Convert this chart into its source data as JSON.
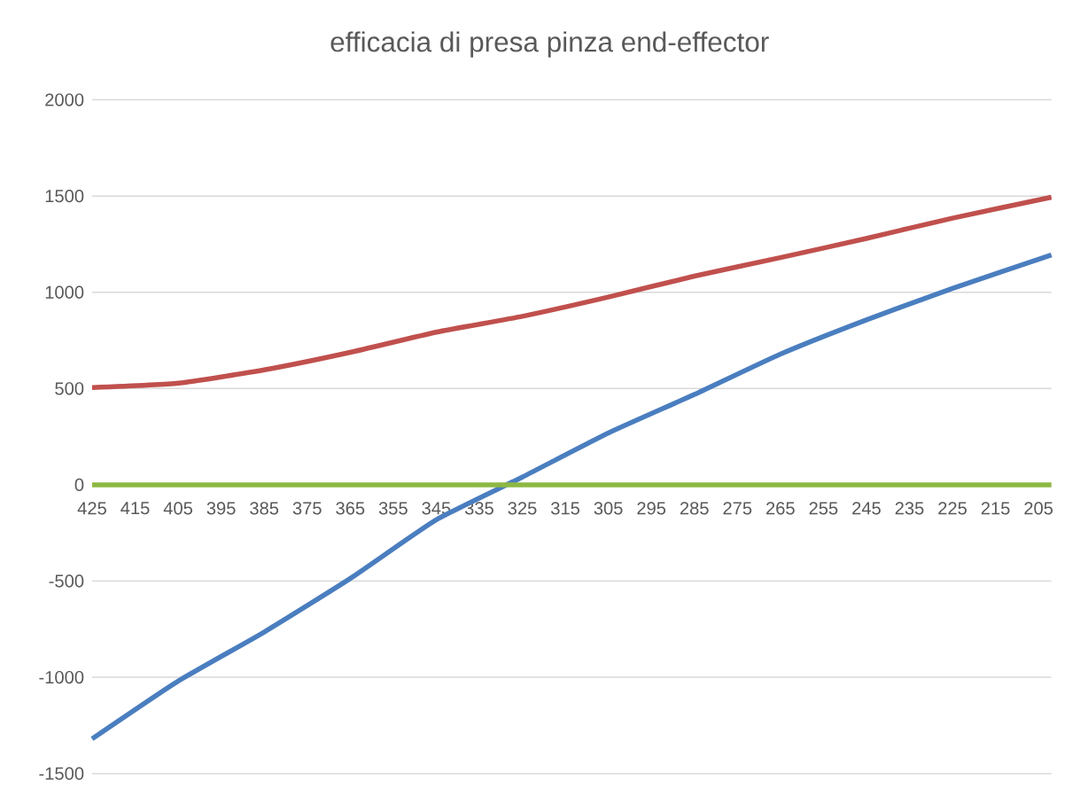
{
  "chart_data": {
    "type": "line",
    "title": "efficacia di presa pinza end-effector",
    "xlim": [
      425,
      202
    ],
    "xticks": [
      425,
      415,
      405,
      395,
      385,
      375,
      365,
      355,
      345,
      335,
      325,
      315,
      305,
      295,
      285,
      275,
      265,
      255,
      245,
      235,
      225,
      215,
      205
    ],
    "ylim": [
      -1500,
      2000
    ],
    "yticks": [
      -1500,
      -1000,
      -500,
      0,
      500,
      1000,
      1500,
      2000
    ],
    "grid": "y",
    "legend": false,
    "marker": "none",
    "line_style": "solid",
    "x": [
      425,
      405,
      385,
      365,
      345,
      325,
      305,
      285,
      265,
      245,
      225,
      202
    ],
    "series": [
      {
        "color": "#4a7ebf",
        "values": [
          -1320,
          -1020,
          -765,
          -487,
          -182,
          40,
          269,
          469,
          679,
          857,
          1020,
          1194
        ]
      },
      {
        "color": "#c0504d",
        "values": [
          505,
          528,
          597,
          688,
          793,
          875,
          975,
          1084,
          1180,
          1280,
          1385,
          1494
        ]
      },
      {
        "color": "#8db843",
        "values": [
          0,
          0,
          0,
          0,
          0,
          0,
          0,
          0,
          0,
          0,
          0,
          0
        ]
      }
    ]
  }
}
